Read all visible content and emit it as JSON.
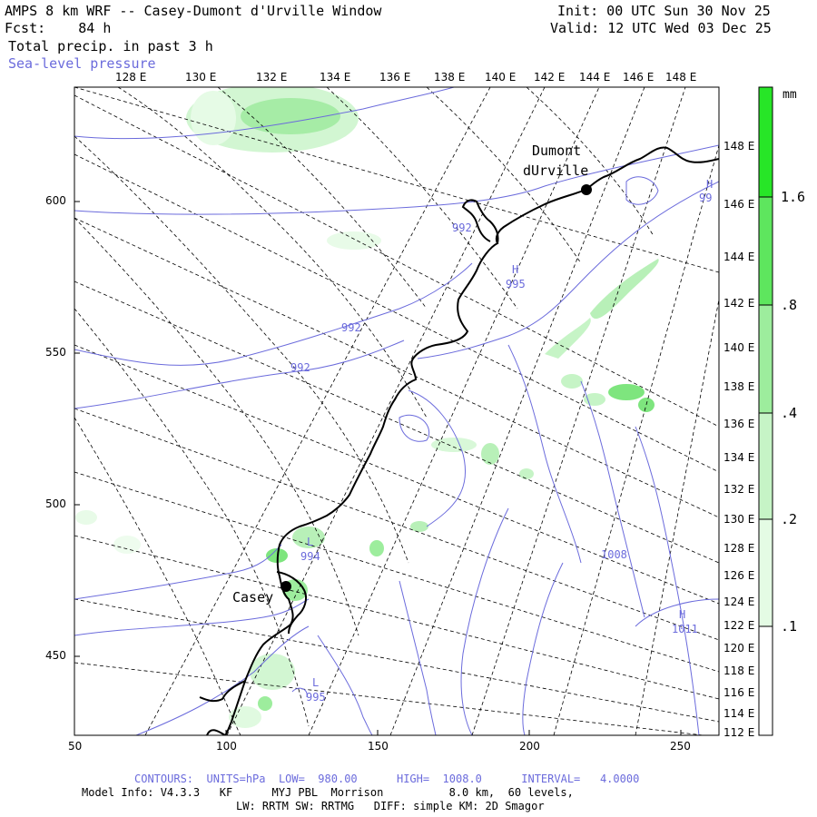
{
  "header": {
    "title": "AMPS 8 km WRF -- Casey-Dumont d'Urville Window",
    "fcst": "Fcst:    84 h",
    "field": "Total precip. in past 3 h",
    "overlay": "Sea-level pressure",
    "init": "Init: 00 UTC Sun 30 Nov 25",
    "valid": "Valid: 12 UTC Wed 03 Dec 25"
  },
  "top_lon_labels": [
    "128 E",
    "130 E",
    "132 E",
    "134 E",
    "136 E",
    "138 E",
    "140 E",
    "142 E",
    "144 E",
    "146 E",
    "148 E"
  ],
  "right_lon_labels": [
    "148 E",
    "146 E",
    "144 E",
    "142 E",
    "140 E",
    "138 E",
    "136 E",
    "134 E",
    "132 E",
    "130 E",
    "128 E",
    "126 E",
    "124 E",
    "122 E",
    "120 E",
    "118 E",
    "116 E",
    "114 E",
    "112 E"
  ],
  "x_axis_labels": [
    "50",
    "100",
    "150",
    "200",
    "250"
  ],
  "y_axis_labels": [
    "600",
    "550",
    "500",
    "450"
  ],
  "stations": {
    "dumont": [
      "Dumont",
      "dUrville"
    ],
    "casey": "Casey"
  },
  "pressure_labels": {
    "p1": "992",
    "p2": "992",
    "p3": "992",
    "p4": "995",
    "p5": "994",
    "p6": "995",
    "p7": "1008",
    "p8": "1011",
    "p9": "99"
  },
  "center_labels": {
    "h1": "H",
    "h2": "H",
    "h3": "H",
    "l1": "L",
    "l2": "L"
  },
  "colorbar": {
    "unit": "mm",
    "levels": [
      ".1",
      ".2",
      ".4",
      ".8",
      "1.6"
    ],
    "colors": [
      "#e4fbe4",
      "#c6f4c6",
      "#9ded9d",
      "#5ee65e",
      "#27e627"
    ]
  },
  "footer": {
    "contours": "CONTOURS:  UNITS=hPa  LOW=  980.00      HIGH=  1008.0      INTERVAL=   4.0000",
    "model": "Model Info: V4.3.3   KF      MYJ PBL  Morrison          8.0 km,  60 levels,",
    "physics": "LW: RRTM SW: RRTMG   DIFF: simple KM: 2D Smagor"
  }
}
